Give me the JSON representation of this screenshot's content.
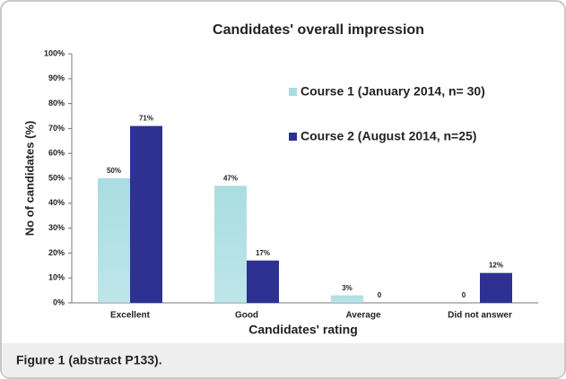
{
  "chart_data": {
    "type": "bar",
    "title": "Candidates' overall impression",
    "ylabel": "No of candidates (%)",
    "xlabel": "Candidates' rating",
    "categories": [
      "Excellent",
      "Good",
      "Average",
      "Did not answer"
    ],
    "series": [
      {
        "name": "Course 1 (January 2014, n= 30)",
        "color": "#a9dde1",
        "values": [
          50,
          47,
          3,
          0
        ],
        "value_labels": [
          "50%",
          "47%",
          "3%",
          "0"
        ]
      },
      {
        "name": "Course 2 (August 2014, n=25)",
        "color": "#2e3192",
        "values": [
          71,
          17,
          0,
          12
        ],
        "value_labels": [
          "71%",
          "17%",
          "0",
          "12%"
        ]
      }
    ],
    "ylim": [
      0,
      100
    ],
    "yticks": [
      {
        "value": 0,
        "label": "0%"
      },
      {
        "value": 10,
        "label": "10%"
      },
      {
        "value": 20,
        "label": "20%"
      },
      {
        "value": 30,
        "label": "30%"
      },
      {
        "value": 40,
        "label": "40%"
      },
      {
        "value": 50,
        "label": "50%"
      },
      {
        "value": 60,
        "label": "60%"
      },
      {
        "value": 70,
        "label": "70%"
      },
      {
        "value": 80,
        "label": "80%"
      },
      {
        "value": 90,
        "label": "90%"
      },
      {
        "value": 100,
        "label": "100%"
      }
    ],
    "grid": false,
    "legend": "upper right"
  },
  "caption": "Figure 1 (abstract P133)."
}
